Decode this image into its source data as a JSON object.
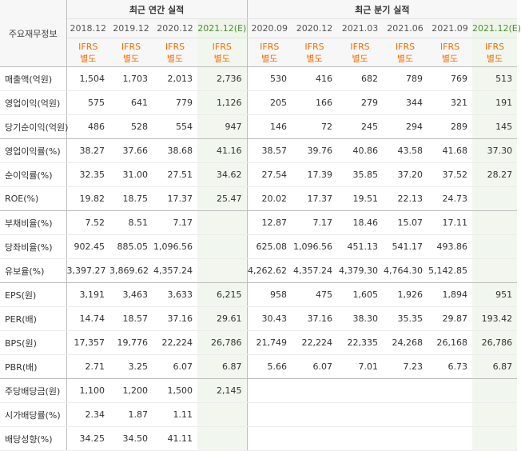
{
  "corner_label": "주요재무정보",
  "annual_group_label": "최근 연간 실적",
  "quarter_group_label": "최근 분기 실적",
  "ifrs_line1": "IFRS",
  "ifrs_line2": "별도",
  "periods": [
    "2018.12",
    "2019.12",
    "2020.12",
    "2021.12(E)",
    "2020.09",
    "2020.12",
    "2021.03",
    "2021.06",
    "2021.09",
    "2021.12(E)"
  ],
  "estimate_color": "#f1f7ee",
  "rows": [
    {
      "label": "매출액(억원)",
      "values": [
        "1,504",
        "1,703",
        "2,013",
        "2,736",
        "530",
        "416",
        "682",
        "789",
        "769",
        "513"
      ]
    },
    {
      "label": "영업이익(억원)",
      "values": [
        "575",
        "641",
        "779",
        "1,126",
        "205",
        "166",
        "279",
        "344",
        "321",
        "191"
      ]
    },
    {
      "label": "당기순이익(억원)",
      "values": [
        "486",
        "528",
        "554",
        "947",
        "146",
        "72",
        "245",
        "294",
        "289",
        "145"
      ]
    },
    {
      "label": "영업이익률(%)",
      "values": [
        "38.27",
        "37.66",
        "38.68",
        "41.16",
        "38.57",
        "39.76",
        "40.86",
        "43.58",
        "41.68",
        "37.30"
      ]
    },
    {
      "label": "순이익률(%)",
      "values": [
        "32.35",
        "31.00",
        "27.51",
        "34.62",
        "27.54",
        "17.39",
        "35.85",
        "37.20",
        "37.52",
        "28.27"
      ]
    },
    {
      "label": "ROE(%)",
      "values": [
        "19.82",
        "18.75",
        "17.37",
        "25.47",
        "20.02",
        "17.37",
        "19.51",
        "22.13",
        "24.73",
        ""
      ]
    },
    {
      "label": "부채비율(%)",
      "values": [
        "7.52",
        "8.51",
        "7.17",
        "",
        "12.87",
        "7.17",
        "18.46",
        "15.07",
        "17.11",
        ""
      ]
    },
    {
      "label": "당좌비율(%)",
      "values": [
        "902.45",
        "885.05",
        "1,096.56",
        "",
        "625.08",
        "1,096.56",
        "451.13",
        "541.17",
        "493.86",
        ""
      ]
    },
    {
      "label": "유보율(%)",
      "values": [
        "3,397.27",
        "3,869.62",
        "4,357.24",
        "",
        "4,262.62",
        "4,357.24",
        "4,379.30",
        "4,764.30",
        "5,142.85",
        ""
      ]
    },
    {
      "label": "EPS(원)",
      "values": [
        "3,191",
        "3,463",
        "3,633",
        "6,215",
        "958",
        "475",
        "1,605",
        "1,926",
        "1,894",
        "951"
      ]
    },
    {
      "label": "PER(배)",
      "values": [
        "14.74",
        "18.57",
        "37.16",
        "29.61",
        "30.43",
        "37.16",
        "38.30",
        "35.35",
        "29.87",
        "193.42"
      ]
    },
    {
      "label": "BPS(원)",
      "values": [
        "17,357",
        "19,776",
        "22,224",
        "26,786",
        "21,749",
        "22,224",
        "22,335",
        "24,268",
        "26,168",
        "26,786"
      ]
    },
    {
      "label": "PBR(배)",
      "values": [
        "2.71",
        "3.25",
        "6.07",
        "6.87",
        "5.66",
        "6.07",
        "7.01",
        "7.23",
        "6.73",
        "6.87"
      ]
    },
    {
      "label": "주당배당금(원)",
      "values": [
        "1,100",
        "1,200",
        "1,500",
        "2,145",
        "",
        "",
        "",
        "",
        "",
        ""
      ]
    },
    {
      "label": "시가배당률(%)",
      "values": [
        "2.34",
        "1.87",
        "1.11",
        "",
        "",
        "",
        "",
        "",
        "",
        ""
      ]
    },
    {
      "label": "배당성향(%)",
      "values": [
        "34.25",
        "34.50",
        "41.11",
        "",
        "",
        "",
        "",
        "",
        "",
        ""
      ]
    }
  ]
}
